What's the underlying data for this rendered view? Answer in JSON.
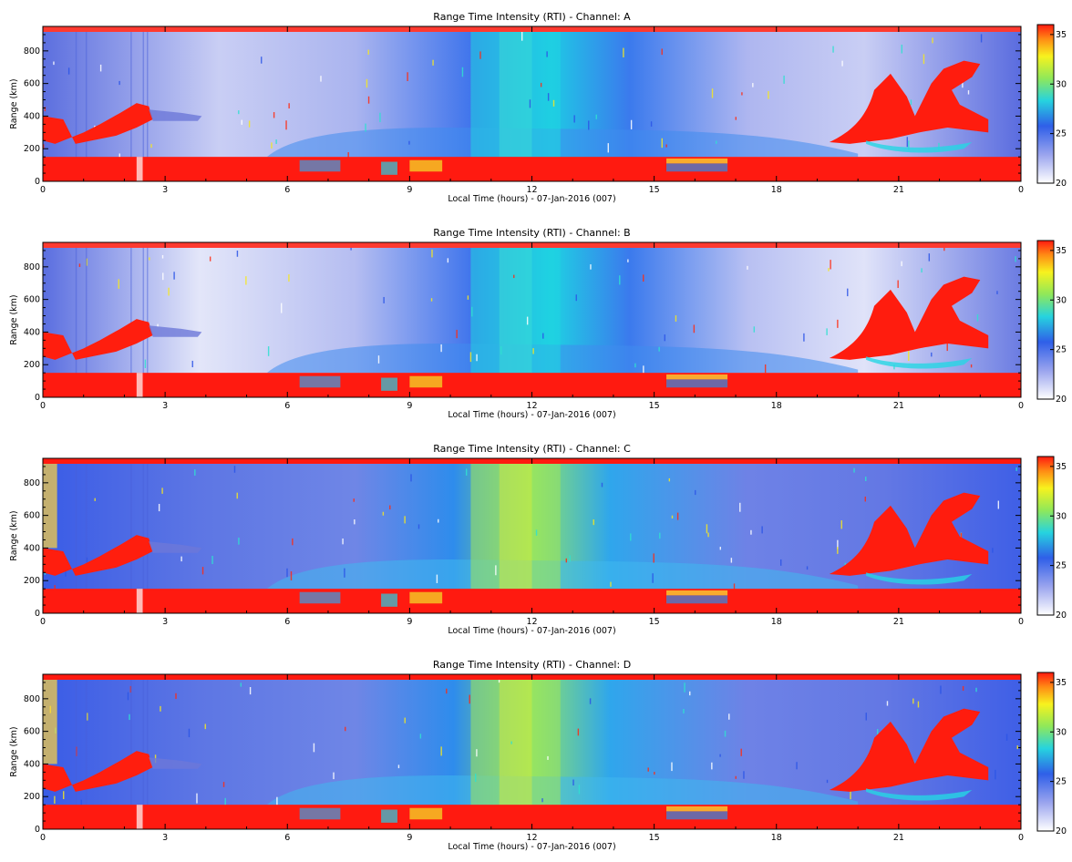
{
  "chart_data": [
    {
      "type": "heatmap",
      "title": "Range Time Intensity (RTI) - Channel: A",
      "xlabel": "Local Time (hours) - 07-Jan-2016 (007)",
      "ylabel": "Range (km)",
      "xlim": [
        0,
        24
      ],
      "ylim": [
        0,
        950
      ],
      "x_ticks": [
        "0",
        "3",
        "6",
        "9",
        "12",
        "15",
        "18",
        "21",
        "0"
      ],
      "y_ticks": [
        "0",
        "200",
        "400",
        "600",
        "800"
      ],
      "colorbar": {
        "range": [
          20,
          36
        ],
        "ticks": [
          "20",
          "25",
          "30",
          "35"
        ]
      },
      "features": [
        {
          "label": "saturated ground clutter band",
          "x": [
            0,
            24
          ],
          "y": [
            0,
            150
          ],
          "value": 36
        },
        {
          "label": "daytime enhancement",
          "x": [
            9.5,
            13
          ],
          "y": [
            150,
            950
          ],
          "value": 27
        },
        {
          "label": "early morning echo",
          "x": [
            0.4,
            2.7
          ],
          "y": [
            230,
            500
          ],
          "value": 36
        },
        {
          "label": "evening echo cluster",
          "x": [
            19.5,
            23
          ],
          "y": [
            230,
            730
          ],
          "value": 36
        }
      ]
    },
    {
      "type": "heatmap",
      "title": "Range Time Intensity (RTI) - Channel: B",
      "xlabel": "Local Time (hours) - 07-Jan-2016 (007)",
      "ylabel": "Range (km)",
      "xlim": [
        0,
        24
      ],
      "ylim": [
        0,
        950
      ],
      "x_ticks": [
        "0",
        "3",
        "6",
        "9",
        "12",
        "15",
        "18",
        "21",
        "0"
      ],
      "y_ticks": [
        "0",
        "200",
        "400",
        "600",
        "800"
      ],
      "colorbar": {
        "range": [
          20,
          36
        ],
        "ticks": [
          "20",
          "25",
          "30",
          "35"
        ]
      },
      "features": [
        {
          "label": "saturated ground clutter band",
          "x": [
            0,
            24
          ],
          "y": [
            0,
            150
          ],
          "value": 36
        },
        {
          "label": "daytime enhancement",
          "x": [
            9.5,
            13
          ],
          "y": [
            150,
            950
          ],
          "value": 27
        },
        {
          "label": "early morning echo",
          "x": [
            0.4,
            2.7
          ],
          "y": [
            230,
            500
          ],
          "value": 36
        },
        {
          "label": "evening echo cluster",
          "x": [
            19.5,
            23
          ],
          "y": [
            230,
            730
          ],
          "value": 36
        }
      ]
    },
    {
      "type": "heatmap",
      "title": "Range Time Intensity (RTI) - Channel: C",
      "xlabel": "Local Time (hours) - 07-Jan-2016 (007)",
      "ylabel": "Range (km)",
      "xlim": [
        0,
        24
      ],
      "ylim": [
        0,
        950
      ],
      "x_ticks": [
        "0",
        "3",
        "6",
        "9",
        "12",
        "15",
        "18",
        "21",
        "0"
      ],
      "y_ticks": [
        "0",
        "200",
        "400",
        "600",
        "800"
      ],
      "colorbar": {
        "range": [
          20,
          36
        ],
        "ticks": [
          "20",
          "25",
          "30",
          "35"
        ]
      },
      "features": [
        {
          "label": "saturated ground clutter band",
          "x": [
            0,
            24
          ],
          "y": [
            0,
            150
          ],
          "value": 36
        },
        {
          "label": "daytime enhancement",
          "x": [
            9.5,
            13
          ],
          "y": [
            150,
            950
          ],
          "value": 29
        },
        {
          "label": "early morning echo",
          "x": [
            0.4,
            2.7
          ],
          "y": [
            230,
            460
          ],
          "value": 36
        },
        {
          "label": "evening echo cluster",
          "x": [
            19.5,
            23
          ],
          "y": [
            230,
            730
          ],
          "value": 36
        }
      ]
    },
    {
      "type": "heatmap",
      "title": "Range Time Intensity (RTI) - Channel: D",
      "xlabel": "Local Time (hours) - 07-Jan-2016 (007)",
      "ylabel": "Range (km)",
      "xlim": [
        0,
        24
      ],
      "ylim": [
        0,
        950
      ],
      "x_ticks": [
        "0",
        "3",
        "6",
        "9",
        "12",
        "15",
        "18",
        "21",
        "0"
      ],
      "y_ticks": [
        "0",
        "200",
        "400",
        "600",
        "800"
      ],
      "colorbar": {
        "range": [
          20,
          36
        ],
        "ticks": [
          "20",
          "25",
          "30",
          "35"
        ]
      },
      "features": [
        {
          "label": "saturated ground clutter band",
          "x": [
            0,
            24
          ],
          "y": [
            0,
            150
          ],
          "value": 36
        },
        {
          "label": "daytime enhancement",
          "x": [
            9.5,
            13
          ],
          "y": [
            150,
            950
          ],
          "value": 29
        },
        {
          "label": "early morning echo",
          "x": [
            0.4,
            2.7
          ],
          "y": [
            230,
            460
          ],
          "value": 36
        },
        {
          "label": "evening echo cluster",
          "x": [
            19.5,
            23
          ],
          "y": [
            230,
            730
          ],
          "value": 36
        }
      ]
    }
  ]
}
